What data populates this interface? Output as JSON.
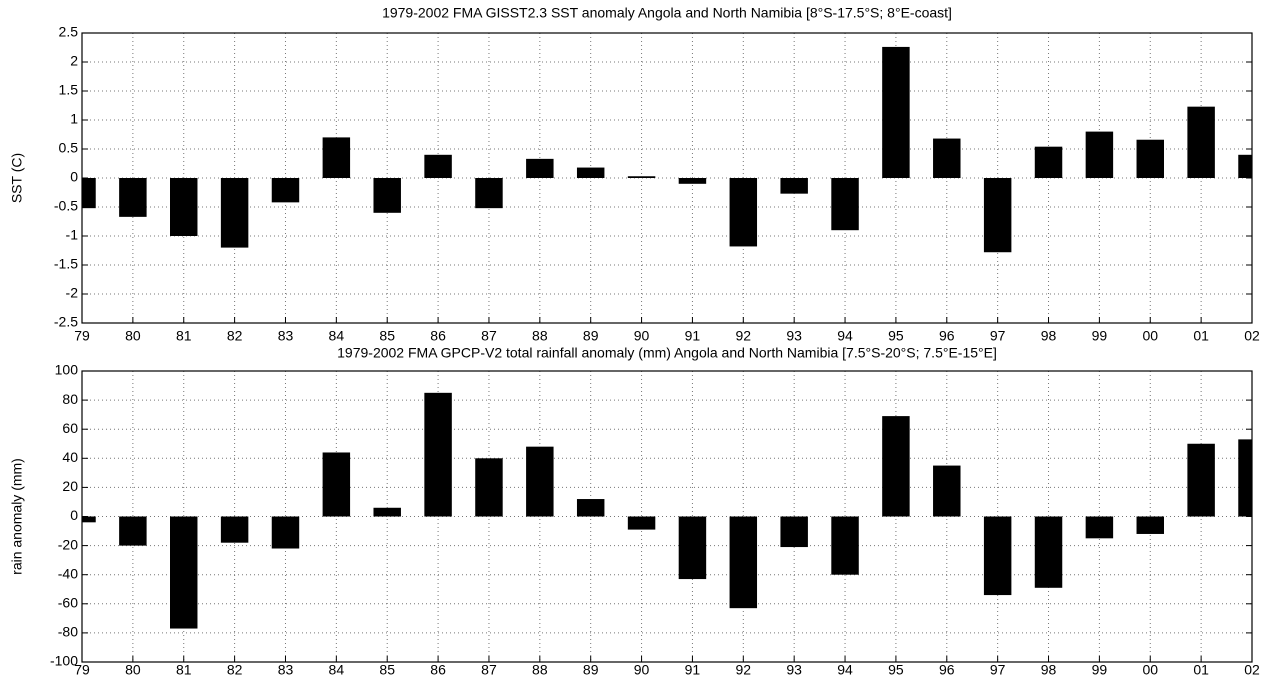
{
  "chart_data": [
    {
      "type": "bar",
      "title": "1979-2002 FMA GISST2.3 SST anomaly  Angola and North Namibia [8°S-17.5°S; 8°E-coast]",
      "ylabel": "SST (C)",
      "categories": [
        "79",
        "80",
        "81",
        "82",
        "83",
        "84",
        "85",
        "86",
        "87",
        "88",
        "89",
        "90",
        "91",
        "92",
        "93",
        "94",
        "95",
        "96",
        "97",
        "98",
        "99",
        "00",
        "01",
        "02"
      ],
      "values": [
        -0.52,
        -0.67,
        -1.0,
        -1.2,
        -0.42,
        0.7,
        -0.6,
        0.4,
        -0.52,
        0.33,
        0.18,
        0.03,
        -0.1,
        -1.18,
        -0.27,
        -0.9,
        2.26,
        0.68,
        -1.28,
        0.54,
        0.8,
        0.66,
        1.23,
        0.4
      ],
      "color": "#000000",
      "ylim": [
        -2.5,
        2.5
      ],
      "yticks": [
        -2.5,
        -2,
        -1.5,
        -1,
        -0.5,
        0,
        0.5,
        1,
        1.5,
        2,
        2.5
      ],
      "grid": true
    },
    {
      "type": "bar",
      "title": "1979-2002  FMA GPCP-V2 total rainfall anomaly (mm) Angola and North Namibia [7.5°S-20°S; 7.5°E-15°E]",
      "ylabel": "rain anomaly (mm)",
      "categories": [
        "79",
        "80",
        "81",
        "82",
        "83",
        "84",
        "85",
        "86",
        "87",
        "88",
        "89",
        "90",
        "91",
        "92",
        "93",
        "94",
        "95",
        "96",
        "97",
        "98",
        "99",
        "00",
        "01",
        "02"
      ],
      "values": [
        -4,
        -20,
        -77,
        -18,
        -22,
        44,
        6,
        85,
        40,
        48,
        12,
        -9,
        -43,
        -63,
        -21,
        -40,
        69,
        35,
        -54,
        -49,
        -15,
        -12,
        50,
        53
      ],
      "color": "#000000",
      "ylim": [
        -100,
        100
      ],
      "yticks": [
        -100,
        -80,
        -60,
        -40,
        -20,
        0,
        20,
        40,
        60,
        80,
        100
      ],
      "grid": true
    }
  ]
}
